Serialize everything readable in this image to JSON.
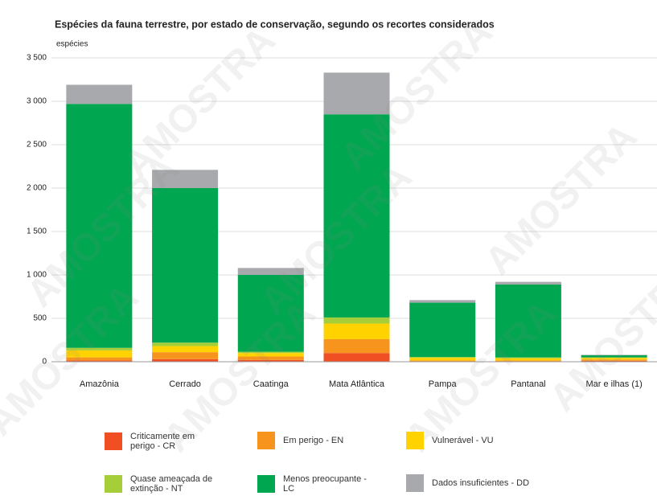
{
  "chart_data": {
    "type": "stacked_bar",
    "title": "Espécies da fauna terrestre, por estado de conservação, segundo os recortes considerados",
    "y_label": "espécies",
    "watermark": "AMOSTRA",
    "categories": [
      "Amazônia",
      "Cerrado",
      "Caatinga",
      "Mata Atlântica",
      "Pampa",
      "Pantanal",
      "Mar e ilhas (1)"
    ],
    "series": [
      {
        "name": "Criticamente em perigo - CR",
        "color": "#f04e23",
        "values": [
          15,
          30,
          20,
          100,
          5,
          5,
          10
        ]
      },
      {
        "name": "Em perigo - EN",
        "color": "#f7941d",
        "values": [
          35,
          80,
          40,
          160,
          10,
          10,
          15
        ]
      },
      {
        "name": "Vulnerável - VU",
        "color": "#ffd200",
        "values": [
          80,
          70,
          40,
          180,
          30,
          25,
          20
        ]
      },
      {
        "name": "Quase ameaçada de extinção - NT",
        "color": "#a6ce39",
        "values": [
          30,
          40,
          15,
          70,
          10,
          10,
          5
        ]
      },
      {
        "name": "Menos preocupante - LC",
        "color": "#00a650",
        "values": [
          2810,
          1780,
          885,
          2340,
          625,
          840,
          25
        ]
      },
      {
        "name": "Dados insuficientes - DD",
        "color": "#a7a9ac",
        "values": [
          220,
          210,
          80,
          480,
          30,
          30,
          5
        ]
      }
    ],
    "ylim": [
      0,
      3500
    ],
    "yticks": [
      0,
      500,
      {
        "value": 1000,
        "label": "1 000"
      },
      {
        "value": 1500,
        "label": "1 500"
      },
      {
        "value": 2000,
        "label": "2 000"
      },
      {
        "value": 2500,
        "label": "2 500"
      },
      {
        "value": 3000,
        "label": "3 000"
      },
      {
        "value": 3500,
        "label": "3 500"
      }
    ],
    "grid": true
  }
}
